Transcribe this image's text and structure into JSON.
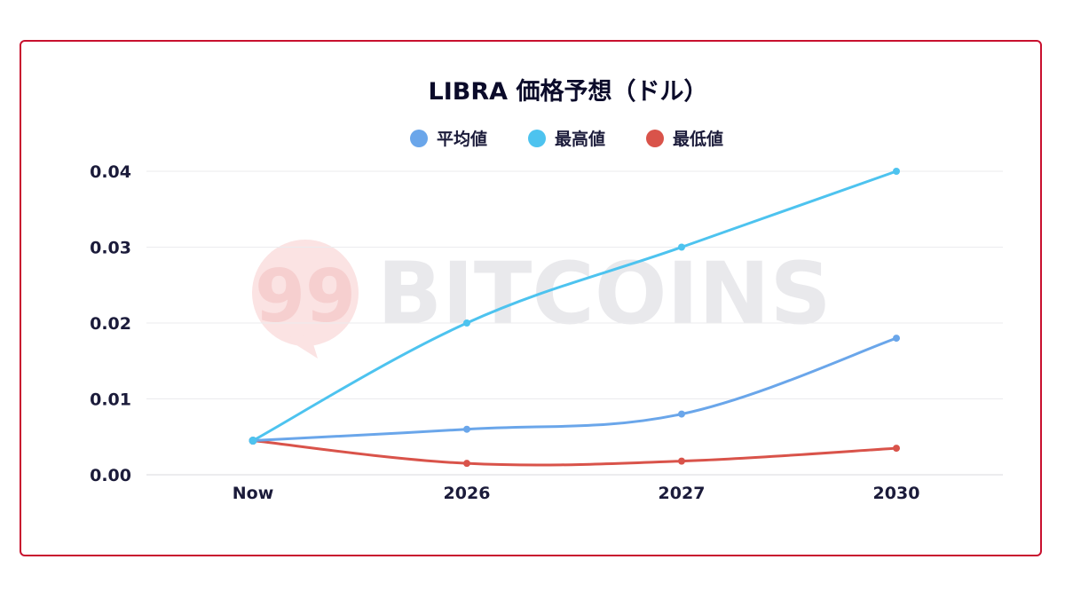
{
  "watermark": {
    "logo_text": "99",
    "text": "BITCOINS"
  },
  "chart_data": {
    "type": "line",
    "title": "LIBRA 価格予想（ドル）",
    "xlabel": "",
    "ylabel": "",
    "categories": [
      "Now",
      "2026",
      "2027",
      "2030"
    ],
    "y_ticks": [
      "0.00",
      "0.01",
      "0.02",
      "0.03",
      "0.04"
    ],
    "y_tick_values": [
      0,
      0.01,
      0.02,
      0.03,
      0.04
    ],
    "ylim": [
      0,
      0.04
    ],
    "grid": true,
    "legend_position": "top-center",
    "series": [
      {
        "name": "平均値",
        "color": "#6aa6ea",
        "values": [
          0.0045,
          0.006,
          0.008,
          0.018
        ]
      },
      {
        "name": "最高値",
        "color": "#4dc3ef",
        "values": [
          0.0045,
          0.02,
          0.03,
          0.04
        ]
      },
      {
        "name": "最低値",
        "color": "#d9534a",
        "values": [
          0.0045,
          0.0015,
          0.0018,
          0.0035
        ]
      }
    ]
  }
}
